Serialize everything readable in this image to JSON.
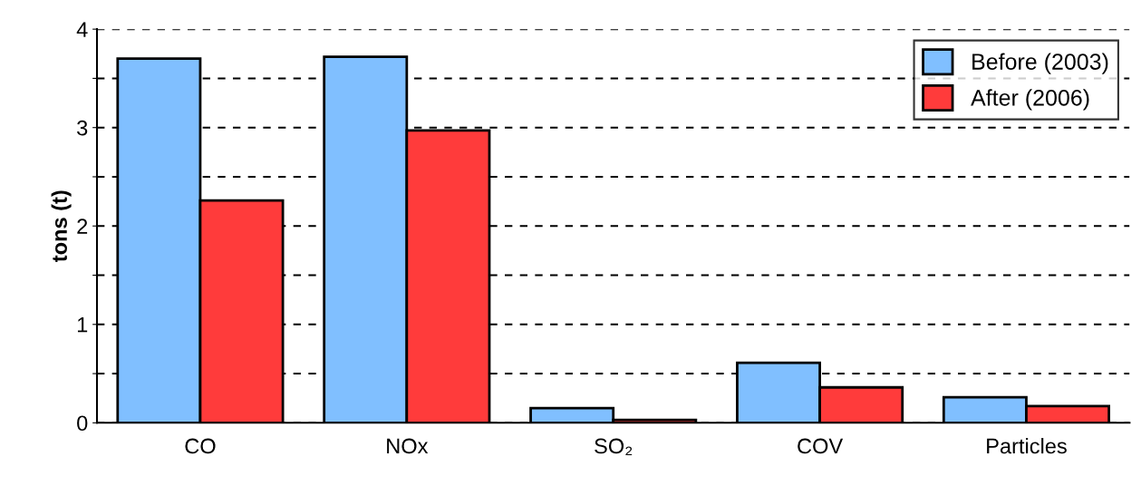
{
  "chart_data": {
    "type": "bar",
    "ylabel": "tons (t)",
    "categories": [
      "CO",
      "NOx",
      "SO₂",
      "COV",
      "Particles"
    ],
    "series": [
      {
        "name": "Before (2003)",
        "color": "#80bfff",
        "values": [
          3.7,
          3.72,
          0.15,
          0.61,
          0.26
        ]
      },
      {
        "name": "After (2006)",
        "color": "#ff3b3b",
        "values": [
          2.26,
          2.97,
          0.03,
          0.36,
          0.17
        ]
      }
    ],
    "ylim": [
      0,
      4
    ],
    "yticks": [
      0,
      {
        "value": 0.5,
        "label": null
      },
      1,
      {
        "value": 1.5,
        "label": null
      },
      2,
      {
        "value": 2.5,
        "label": null
      },
      3,
      {
        "value": 3.5,
        "label": null
      },
      4
    ],
    "grid": "y",
    "legend": "top right"
  }
}
